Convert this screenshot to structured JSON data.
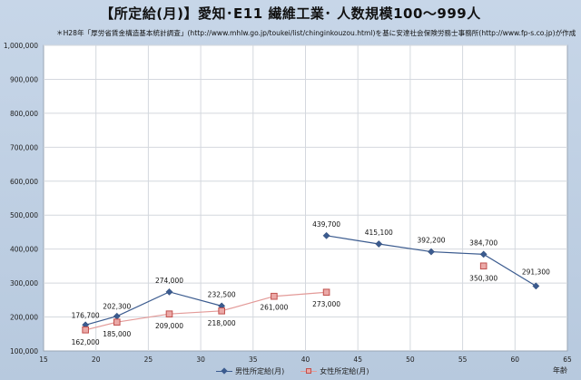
{
  "chart_data": {
    "type": "line",
    "title": "【所定給(月)】愛知･E11 繊維工業･ 人数規模100～999人",
    "subtitle": "＊H28年「厚労省賃金構造基本統計調査」(http://www.mhlw.go.jp/toukei/list/chinginkouzou.html)を基に安達社会保険労務士事務所(http://www.fp-s.co.jp)が作成",
    "xlabel": "年齢",
    "ylabel": "",
    "xlim": [
      15,
      65
    ],
    "ylim": [
      100000,
      1000000
    ],
    "x_ticks": [
      "15",
      "20",
      "25",
      "30",
      "35",
      "40",
      "45",
      "50",
      "55",
      "60",
      "65"
    ],
    "y_ticks": [
      "100,000",
      "200,000",
      "300,000",
      "400,000",
      "500,000",
      "600,000",
      "700,000",
      "800,000",
      "900,000",
      "1,000,000"
    ],
    "grid": true,
    "legend_position": "bottom",
    "series": [
      {
        "name": "男性所定給(月)",
        "color": "#3b5b8f",
        "marker": "diamond",
        "segments": [
          [
            {
              "x": 19,
              "y": 176700,
              "label": "176,700"
            },
            {
              "x": 22,
              "y": 202300,
              "label": "202,300"
            },
            {
              "x": 27,
              "y": 274000,
              "label": "274,000"
            },
            {
              "x": 32,
              "y": 232500,
              "label": "232,500"
            }
          ],
          [
            {
              "x": 42,
              "y": 439700,
              "label": "439,700"
            },
            {
              "x": 47,
              "y": 415100,
              "label": "415,100"
            },
            {
              "x": 52,
              "y": 392200,
              "label": "392,200"
            },
            {
              "x": 57,
              "y": 384700,
              "label": "384,700"
            },
            {
              "x": 62,
              "y": 291300,
              "label": "291,300"
            }
          ]
        ]
      },
      {
        "name": "女性所定給(月)",
        "color": "#c0504d",
        "marker": "square",
        "segments": [
          [
            {
              "x": 19,
              "y": 162000,
              "label": "162,000"
            },
            {
              "x": 22,
              "y": 185000,
              "label": "185,000"
            },
            {
              "x": 27,
              "y": 209000,
              "label": "209,000"
            },
            {
              "x": 32,
              "y": 218000,
              "label": "218,000"
            },
            {
              "x": 37,
              "y": 261000,
              "label": "261,000"
            },
            {
              "x": 42,
              "y": 273000,
              "label": "273,000"
            }
          ],
          [
            {
              "x": 57,
              "y": 350300,
              "label": "350,300"
            }
          ]
        ]
      }
    ]
  }
}
